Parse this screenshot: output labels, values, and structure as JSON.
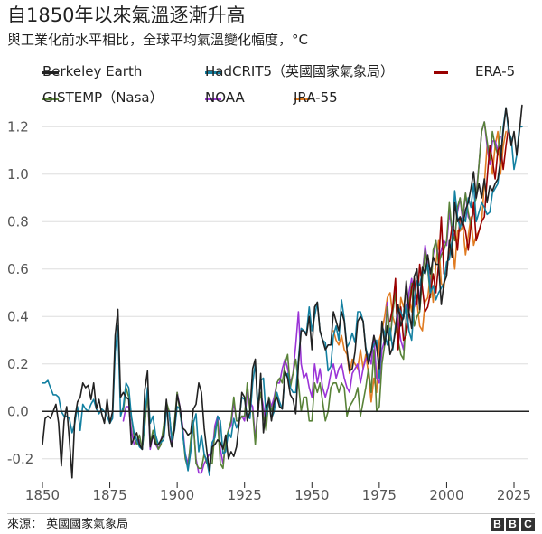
{
  "title": "自1850年以來氣溫逐漸升高",
  "subtitle": "與工業化前水平相比，全球平均氣溫變化幅度，°C",
  "source": "來源：  英國國家氣象局",
  "logo": [
    "B",
    "B",
    "C"
  ],
  "colors": {
    "axis": "#222222",
    "grid": "#dddddd",
    "tick": "#555555"
  },
  "chart_data": {
    "type": "line",
    "title": "自1850年以來氣溫逐漸升高",
    "subtitle": "與工業化前水平相比，全球平均氣溫變化幅度，°C",
    "xlabel": "",
    "ylabel": "",
    "xlim": [
      1850,
      2025
    ],
    "ylim": [
      -0.3,
      1.3
    ],
    "x_ticks": [
      1850,
      1875,
      1900,
      1925,
      1950,
      1975,
      2000,
      2025
    ],
    "y_ticks": [
      -0.2,
      0.0,
      0.2,
      0.4,
      0.6,
      0.8,
      1.0,
      1.2
    ],
    "y_tick_labels": [
      "-0.2",
      "0.0",
      "0.2",
      "0.4",
      "0.6",
      "0.8",
      "1.0",
      "1.2"
    ],
    "grid": "horizontal",
    "legend_position": "top",
    "series": [
      {
        "name": "Berkeley Earth",
        "color": "#222222",
        "x_start": 1850,
        "values": [
          -0.14,
          -0.03,
          -0.02,
          -0.03,
          0.0,
          0.03,
          -0.05,
          -0.23,
          -0.04,
          0.02,
          -0.12,
          -0.28,
          -0.03,
          0.04,
          0.06,
          0.12,
          0.1,
          0.11,
          0.05,
          0.12,
          0.01,
          0.05,
          -0.01,
          -0.05,
          0.05,
          -0.05,
          0.0,
          0.32,
          0.43,
          0.06,
          0.08,
          0.06,
          0.05,
          -0.14,
          -0.11,
          -0.09,
          -0.14,
          -0.16,
          0.09,
          0.17,
          -0.15,
          -0.1,
          -0.14,
          -0.14,
          -0.12,
          -0.1,
          0.05,
          -0.1,
          -0.15,
          -0.07,
          0.07,
          0.02,
          -0.07,
          -0.08,
          -0.1,
          -0.09,
          0.01,
          0.03,
          0.12,
          0.08,
          -0.07,
          -0.17,
          -0.25,
          -0.15,
          -0.14,
          -0.12,
          -0.13,
          -0.16,
          -0.1,
          -0.2,
          -0.17,
          -0.19,
          -0.15,
          -0.05,
          0.08,
          0.06,
          -0.04,
          0.0,
          0.18,
          0.22,
          -0.02,
          0.16,
          -0.09,
          0.01,
          0.05,
          -0.04,
          0.04,
          0.06,
          0.02,
          0.01,
          0.17,
          0.14,
          0.07,
          0.05,
          -0.01,
          0.2,
          0.34,
          0.34,
          0.32,
          0.4,
          0.26,
          0.44,
          0.46,
          0.34,
          0.3,
          0.26,
          0.28,
          0.28,
          0.42,
          0.38,
          0.34,
          0.42,
          0.38,
          0.26,
          0.17,
          0.18,
          0.25,
          0.38,
          0.4,
          0.38,
          0.26,
          0.2,
          0.25,
          0.32,
          0.27,
          0.18,
          0.38,
          0.28,
          0.36,
          0.24,
          0.27,
          0.34,
          0.45,
          0.36,
          0.4,
          0.55,
          0.42,
          0.35,
          0.57,
          0.6,
          0.43,
          0.61,
          0.58,
          0.66,
          0.58,
          0.65,
          0.62,
          0.62,
          0.45,
          0.54,
          0.57,
          0.72,
          0.65,
          0.88,
          0.8,
          0.82,
          0.78,
          0.85,
          0.88,
          0.94,
          1.01,
          0.9,
          0.96,
          0.9,
          0.98,
          0.88,
          0.95,
          0.93,
          0.96,
          0.98,
          1.06,
          1.18,
          1.28,
          1.2,
          1.12,
          1.18,
          1.08,
          1.18,
          1.29
        ]
      },
      {
        "name": "HadCRIT5（英國國家氣象局）",
        "color": "#1380a1",
        "x_start": 1850,
        "values": [
          0.12,
          0.12,
          0.13,
          0.1,
          0.07,
          0.07,
          0.06,
          0.0,
          -0.02,
          -0.02,
          -0.03,
          -0.09,
          -0.05,
          0.02,
          -0.08,
          0.03,
          0.01,
          0.0,
          0.03,
          0.05,
          0.01,
          -0.01,
          0.01,
          0.0,
          -0.02,
          -0.05,
          -0.03,
          0.25,
          0.36,
          -0.02,
          0.02,
          0.12,
          0.1,
          -0.02,
          -0.09,
          -0.12,
          -0.15,
          -0.16,
          -0.02,
          0.1,
          -0.05,
          -0.02,
          -0.1,
          -0.14,
          -0.13,
          -0.12,
          0.0,
          0.0,
          -0.12,
          -0.08,
          0.02,
          0.01,
          -0.09,
          -0.18,
          -0.25,
          -0.17,
          -0.05,
          -0.01,
          -0.17,
          -0.1,
          -0.18,
          -0.21,
          -0.27,
          -0.13,
          -0.11,
          -0.02,
          -0.04,
          -0.18,
          -0.17,
          -0.09,
          -0.11,
          -0.03,
          -0.07,
          -0.04,
          0.06,
          0.05,
          -0.02,
          -0.03,
          0.12,
          0.2,
          0.02,
          0.13,
          0.14,
          -0.02,
          0.05,
          -0.03,
          0.0,
          0.08,
          0.04,
          0.01,
          0.15,
          0.16,
          0.1,
          0.08,
          0.08,
          0.22,
          0.35,
          0.34,
          0.33,
          0.44,
          0.34,
          0.4,
          0.46,
          0.34,
          0.3,
          0.29,
          0.17,
          0.19,
          0.32,
          0.36,
          0.3,
          0.47,
          0.39,
          0.27,
          0.29,
          0.33,
          0.29,
          0.42,
          0.42,
          0.38,
          0.27,
          0.22,
          0.25,
          0.28,
          0.3,
          0.14,
          0.36,
          0.33,
          0.28,
          0.35,
          0.26,
          0.36,
          0.44,
          0.42,
          0.39,
          0.45,
          0.34,
          0.3,
          0.46,
          0.55,
          0.53,
          0.59,
          0.58,
          0.62,
          0.5,
          0.53,
          0.47,
          0.5,
          0.52,
          0.54,
          0.63,
          0.64,
          0.72,
          0.93,
          0.82,
          0.77,
          0.82,
          0.8,
          0.9,
          0.86,
          0.96,
          0.8,
          0.84,
          0.88,
          0.86,
          0.83,
          0.84,
          0.92,
          0.94,
          0.96,
          1.06,
          1.2,
          1.28,
          1.18,
          1.15,
          1.02,
          1.08,
          1.2,
          1.2
        ]
      },
      {
        "name": "ERA-5",
        "color": "#990000",
        "x_start": 1979,
        "values": [
          0.38,
          0.44,
          0.56,
          0.26,
          0.44,
          0.3,
          0.32,
          0.42,
          0.52,
          0.56,
          0.45,
          0.62,
          0.52,
          0.42,
          0.44,
          0.5,
          0.58,
          0.5,
          0.62,
          0.82,
          0.58,
          0.58,
          0.7,
          0.78,
          0.76,
          0.68,
          0.82,
          0.8,
          0.76,
          0.68,
          0.78,
          0.88,
          0.72,
          0.76,
          0.8,
          0.82,
          0.98,
          1.12,
          1.06,
          0.98,
          1.1,
          1.12,
          1.02,
          1.12,
          1.2
        ]
      },
      {
        "name": "GISTEMP（Nasa）",
        "color": "#588238",
        "x_start": 1880,
        "values": [
          0.0,
          0.1,
          0.06,
          -0.02,
          -0.11,
          -0.14,
          -0.1,
          -0.16,
          -0.06,
          0.08,
          -0.14,
          -0.08,
          -0.12,
          -0.16,
          -0.14,
          -0.06,
          0.04,
          0.0,
          -0.12,
          -0.04,
          0.08,
          0.0,
          -0.08,
          -0.2,
          -0.24,
          -0.12,
          -0.04,
          -0.22,
          -0.24,
          -0.24,
          -0.18,
          -0.22,
          -0.22,
          -0.22,
          -0.08,
          -0.04,
          -0.22,
          -0.24,
          -0.12,
          -0.08,
          -0.04,
          0.06,
          -0.04,
          -0.04,
          -0.02,
          -0.02,
          0.12,
          0.0,
          0.0,
          -0.14,
          0.02,
          0.08,
          -0.02,
          -0.08,
          0.06,
          0.0,
          0.04,
          0.12,
          0.14,
          0.12,
          0.2,
          0.24,
          0.1,
          0.16,
          0.22,
          0.12,
          0.0,
          0.06,
          0.06,
          -0.04,
          -0.04,
          0.12,
          0.08,
          0.12,
          0.04,
          -0.04,
          0.0,
          0.1,
          0.12,
          0.12,
          0.08,
          0.12,
          0.1,
          -0.02,
          0.02,
          0.04,
          0.06,
          0.1,
          -0.02,
          0.04,
          0.1,
          0.18,
          0.08,
          0.26,
          0.0,
          0.02,
          0.2,
          0.28,
          0.44,
          0.3,
          0.42,
          0.5,
          0.3,
          0.24,
          0.22,
          0.4,
          0.44,
          0.54,
          0.36,
          0.4,
          0.42,
          0.56,
          0.68,
          0.6,
          0.48,
          0.68,
          0.72,
          0.62,
          0.66,
          0.68,
          0.72,
          0.88,
          0.76,
          0.72,
          0.86,
          0.9,
          0.82,
          0.92,
          0.84,
          0.78,
          0.86,
          0.9,
          1.04,
          1.18,
          1.22,
          1.14,
          1.06,
          1.18,
          1.12,
          1.08,
          1.2
        ]
      },
      {
        "name": "NOAA",
        "color": "#9b34d7",
        "x_start": 1880,
        "values": [
          -0.04,
          0.02,
          0.02,
          -0.08,
          -0.14,
          -0.12,
          -0.12,
          -0.16,
          -0.04,
          0.08,
          -0.16,
          -0.1,
          -0.14,
          -0.16,
          -0.12,
          -0.08,
          0.02,
          0.0,
          -0.14,
          -0.06,
          0.08,
          0.02,
          -0.06,
          -0.18,
          -0.22,
          -0.14,
          -0.06,
          -0.2,
          -0.26,
          -0.26,
          -0.22,
          -0.2,
          -0.18,
          -0.18,
          -0.06,
          -0.02,
          -0.16,
          -0.22,
          -0.14,
          -0.08,
          -0.06,
          0.04,
          -0.04,
          -0.04,
          -0.02,
          -0.04,
          0.08,
          0.04,
          0.02,
          -0.12,
          0.02,
          0.08,
          0.02,
          -0.06,
          0.06,
          0.02,
          0.06,
          0.12,
          0.12,
          0.18,
          0.22,
          0.18,
          0.12,
          0.16,
          0.28,
          0.42,
          0.2,
          0.14,
          0.16,
          0.1,
          0.06,
          0.2,
          0.12,
          0.18,
          0.1,
          0.06,
          0.1,
          0.16,
          0.2,
          0.14,
          0.18,
          0.2,
          0.14,
          0.1,
          0.08,
          0.16,
          0.18,
          0.2,
          0.12,
          0.18,
          0.22,
          0.24,
          0.2,
          0.32,
          0.14,
          0.12,
          0.26,
          0.3,
          0.46,
          0.3,
          0.42,
          0.52,
          0.38,
          0.3,
          0.26,
          0.4,
          0.5,
          0.56,
          0.44,
          0.48,
          0.48,
          0.58,
          0.7,
          0.62,
          0.52,
          0.66,
          0.72,
          0.64,
          0.68,
          0.72,
          0.7,
          0.84,
          0.76,
          0.74,
          0.84,
          0.9,
          0.8,
          0.92,
          0.82,
          0.8,
          0.84,
          0.92,
          1.04,
          1.18,
          1.22,
          1.12,
          1.04,
          1.14,
          1.14,
          1.1,
          1.16
        ]
      },
      {
        "name": "JRA-55",
        "color": "#e07b21",
        "x_start": 1958,
        "values": [
          0.34,
          0.3,
          0.28,
          0.32,
          0.26,
          0.24,
          0.16,
          0.22,
          0.2,
          0.18,
          0.26,
          0.18,
          0.24,
          0.16,
          0.04,
          0.14,
          0.08,
          0.3,
          0.34,
          0.4,
          0.48,
          0.5,
          0.4,
          0.36,
          0.3,
          0.48,
          0.44,
          0.5,
          0.48,
          0.42,
          0.54,
          0.46,
          0.36,
          0.34,
          0.46,
          0.48,
          0.58,
          0.46,
          0.62,
          0.72,
          0.54,
          0.52,
          0.62,
          0.66,
          0.72,
          0.6,
          0.76,
          0.76,
          0.78,
          0.66,
          0.74,
          0.82,
          0.7,
          0.74,
          0.76,
          0.8,
          0.96,
          1.12,
          1.08,
          1.0,
          1.12,
          1.18,
          1.0,
          1.12,
          1.18
        ]
      }
    ]
  }
}
